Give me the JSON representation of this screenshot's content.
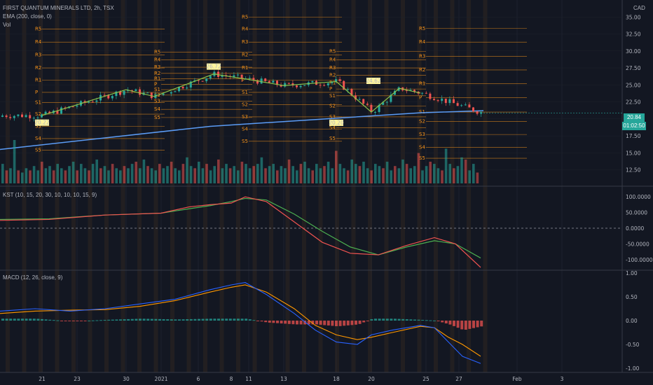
{
  "header": {
    "symbol": "FIRST QUANTUM MINERALS LTD, 2h, TSX",
    "ema": "EMA (200, close, 0)",
    "vol": "Vol",
    "kst": "KST (10, 15, 20, 30, 10, 10, 10, 15, 9)",
    "macd": "MACD (12, 26, close, 9)",
    "currency": "CAD"
  },
  "price_tags": {
    "last": "20.84",
    "countdown": "01:02:50"
  },
  "colors": {
    "background": "#131722",
    "up": "#26a69a",
    "down": "#ef5350",
    "pivot": "#f7931a",
    "ema": "#5b9cf6",
    "zigzag": "#8bc34a",
    "kst": "#ef5350",
    "kst_signal": "#4caf50",
    "macd": "#2962ff",
    "macd_signal": "#ff9800"
  },
  "chart_data": [
    {
      "type": "candlestick",
      "title": "FIRST QUANTUM MINERALS LTD, 2h, TSX",
      "ylim": [
        10.5,
        37.5
      ],
      "y_ticks": [
        "35.00",
        "32.50",
        "30.00",
        "27.50",
        "25.00",
        "22.50",
        "20.00",
        "17.50",
        "15.00",
        "12.50"
      ],
      "x_ticks": [
        "21",
        "23",
        "30",
        "2021",
        "6",
        "8",
        "11",
        "13",
        "18",
        "20",
        "25",
        "27",
        "Feb",
        "3"
      ],
      "labelled_pivots": [
        "20.22",
        "26.72",
        "20.20",
        "24.62"
      ],
      "ema200": [
        15.5,
        18.9,
        20.9,
        21.2
      ],
      "zigzag": [
        20.5,
        24.3,
        23.3,
        26.6,
        25.8,
        24.9,
        25.5,
        21.0,
        24.5,
        23.8
      ]
    },
    {
      "type": "bar",
      "title": "Vol",
      "values": [
        0.45,
        0.3,
        0.35,
        1.0,
        0.3,
        0.25,
        0.35,
        0.3,
        0.4,
        0.3,
        0.5,
        0.35,
        0.4,
        0.3,
        0.45,
        0.35,
        0.3,
        0.4,
        0.5,
        0.3,
        0.45,
        0.35,
        0.3,
        0.45,
        0.55,
        0.35,
        0.4,
        0.3,
        0.45,
        0.35,
        0.3,
        0.4,
        0.35,
        0.45,
        0.5,
        0.35,
        0.55,
        0.4,
        0.35,
        0.3,
        0.45,
        0.35,
        0.4,
        0.5,
        0.35,
        0.3,
        0.45,
        0.6,
        0.4,
        0.35,
        0.5,
        0.35,
        0.45,
        0.3,
        0.4,
        0.55,
        0.35,
        0.45,
        0.35,
        0.4,
        0.3,
        0.5,
        0.45,
        0.35,
        0.4,
        0.45,
        0.6,
        0.35,
        0.4,
        0.45,
        0.3,
        0.4,
        0.35,
        0.55,
        0.4,
        0.3,
        0.45,
        0.5,
        0.35,
        0.3,
        0.45,
        0.35,
        0.4,
        0.5,
        0.35,
        0.75,
        0.45,
        0.35,
        0.3,
        0.55,
        0.45,
        0.4,
        0.5,
        0.35,
        0.3,
        0.45,
        0.4,
        0.35,
        0.5,
        0.3,
        0.4,
        0.35,
        0.55,
        0.45,
        0.35,
        0.4,
        0.7,
        0.3,
        0.4,
        0.5,
        0.45,
        0.35,
        0.3,
        0.8,
        0.45,
        0.35,
        0.4,
        0.6,
        0.55,
        0.3,
        0.45,
        0.25
      ]
    },
    {
      "type": "line",
      "title": "KST (10, 15, 20, 30, 10, 10, 10, 15, 9)",
      "y_ticks": [
        "100.0000",
        "50.0000",
        "0.0000",
        "-50.0000",
        "-100.0000"
      ],
      "ylim": [
        -125,
        125
      ],
      "series": [
        {
          "name": "KST",
          "x": [
            0,
            70,
            150,
            230,
            270,
            300,
            330,
            350,
            380,
            420,
            460,
            500,
            540,
            580,
            620,
            650,
            686
          ],
          "values": [
            25,
            28,
            42,
            48,
            68,
            75,
            80,
            100,
            85,
            20,
            -45,
            -80,
            -85,
            -55,
            -30,
            -50,
            -125
          ]
        },
        {
          "name": "Signal",
          "x": [
            0,
            70,
            150,
            230,
            270,
            300,
            330,
            350,
            380,
            420,
            460,
            500,
            540,
            580,
            620,
            650,
            686
          ],
          "values": [
            28,
            30,
            42,
            48,
            62,
            72,
            85,
            95,
            90,
            45,
            -10,
            -60,
            -85,
            -60,
            -40,
            -50,
            -95
          ]
        }
      ]
    },
    {
      "type": "line",
      "title": "MACD (12, 26, close, 9)",
      "y_ticks": [
        "1.00",
        "0.50",
        "0.00",
        "-0.50",
        "-1.00"
      ],
      "ylim": [
        -1.0,
        1.0
      ],
      "series": [
        {
          "name": "MACD",
          "x": [
            0,
            50,
            100,
            150,
            200,
            250,
            300,
            330,
            350,
            380,
            420,
            450,
            480,
            510,
            530,
            560,
            600,
            620,
            640,
            660,
            686
          ],
          "values": [
            0.2,
            0.25,
            0.2,
            0.25,
            0.35,
            0.45,
            0.65,
            0.75,
            0.8,
            0.55,
            0.15,
            -0.2,
            -0.45,
            -0.5,
            -0.3,
            -0.2,
            -0.1,
            -0.15,
            -0.45,
            -0.75,
            -0.9
          ]
        },
        {
          "name": "Signal",
          "x": [
            0,
            50,
            100,
            150,
            200,
            250,
            300,
            330,
            350,
            380,
            420,
            450,
            480,
            510,
            530,
            560,
            600,
            620,
            640,
            660,
            686
          ],
          "values": [
            0.15,
            0.2,
            0.22,
            0.23,
            0.3,
            0.42,
            0.6,
            0.7,
            0.75,
            0.6,
            0.25,
            -0.1,
            -0.3,
            -0.4,
            -0.35,
            -0.25,
            -0.12,
            -0.15,
            -0.35,
            -0.5,
            -0.75
          ]
        }
      ]
    }
  ]
}
